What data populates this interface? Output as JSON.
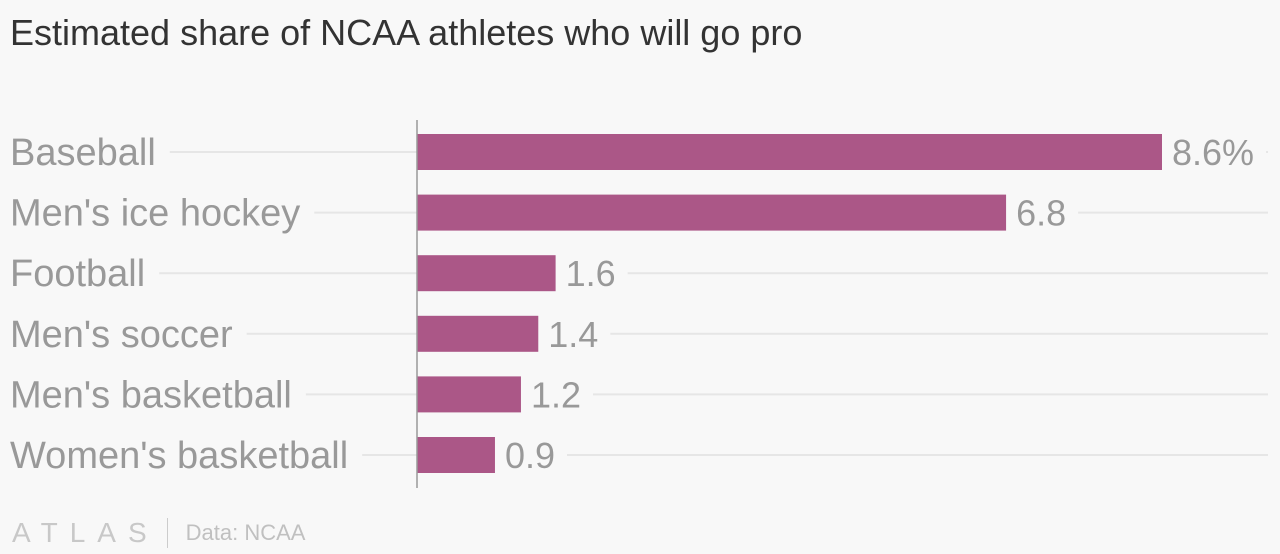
{
  "title": "Estimated share of NCAA athletes who will go pro",
  "footer": {
    "brand": "ATLAS",
    "source": "Data: NCAA"
  },
  "colors": {
    "bar": "#ab5787",
    "grid": "#e6e6e6",
    "axis": "#999999",
    "label": "#999999"
  },
  "chart_data": {
    "type": "bar",
    "orientation": "horizontal",
    "title": "Estimated share of NCAA athletes who will go pro",
    "categories": [
      "Baseball",
      "Men's ice hockey",
      "Football",
      "Men's soccer",
      "Men's basketball",
      "Women's basketball"
    ],
    "values": [
      8.6,
      6.8,
      1.6,
      1.4,
      1.2,
      0.9
    ],
    "value_labels": [
      "8.6%",
      "6.8",
      "1.6",
      "1.4",
      "1.2",
      "0.9"
    ],
    "unit": "%",
    "xlim": [
      0,
      8.6
    ],
    "grid": true,
    "source": "Data: NCAA"
  }
}
